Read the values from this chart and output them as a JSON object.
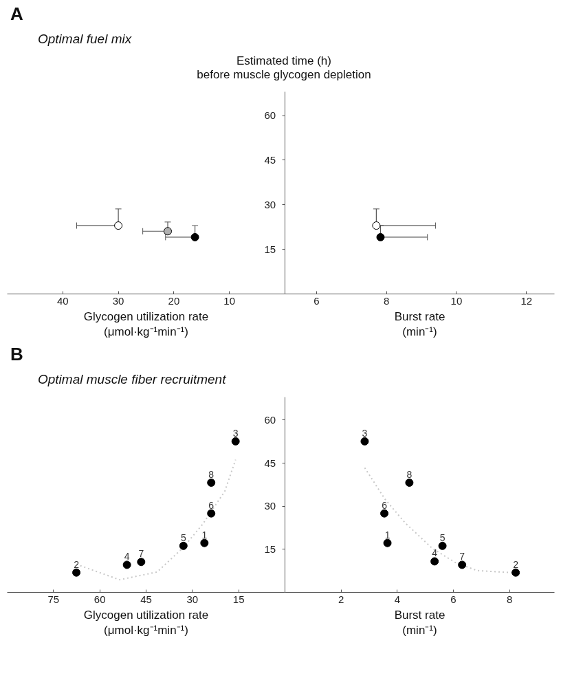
{
  "chart_data": [
    {
      "type": "scatter",
      "title": "A",
      "subtitle": "Optimal fuel mix",
      "xlabel": "Glycogen utilization rate\n(μmol·kg⁻¹min⁻¹)",
      "xlim": [
        50,
        0
      ],
      "xticks": [
        40,
        30,
        20,
        10
      ],
      "ylim": [
        0,
        68
      ],
      "yticks": [
        15,
        30,
        45,
        60
      ],
      "grid": false,
      "marker": "circle",
      "series": [
        {
          "color": "#ffffff",
          "x": [
            30
          ],
          "values": [
            23
          ],
          "errors": [
            [
              23,
              28.6
            ]
          ],
          "xerrors": [
            [
              30,
              37.5
            ]
          ]
        },
        {
          "color": "#b0b0b0",
          "x": [
            21.1
          ],
          "values": [
            21.1
          ],
          "errors": [
            [
              21.1,
              24.2
            ]
          ],
          "xerrors": [
            [
              21.1,
              25.6
            ]
          ]
        },
        {
          "color": "#000000",
          "x": [
            16.2
          ],
          "values": [
            19.1
          ],
          "errors": [
            [
              19.1,
              23
            ]
          ],
          "xerrors": [
            [
              16.2,
              21.5
            ]
          ]
        }
      ]
    },
    {
      "type": "scatter",
      "ylabel": "Estimated time (h)\nbefore muscle glycogen depletion",
      "xlabel": "Burst rate\n(min⁻¹)",
      "xlim": [
        5.1,
        12.8
      ],
      "xticks": [
        6,
        8,
        10,
        12
      ],
      "ylim": [
        0,
        68
      ],
      "yticks": [
        15,
        30,
        45,
        60
      ],
      "tick_labels": "x",
      "grid": false,
      "marker": "circle",
      "series": [
        {
          "color": "#ffffff",
          "x": [
            7.71
          ],
          "values": [
            23
          ],
          "errors": [
            [
              23,
              28.6
            ]
          ],
          "xerrors": [
            [
              7.71,
              9.4
            ]
          ]
        },
        {
          "color": "#000000",
          "x": [
            7.83
          ],
          "values": [
            19.1
          ],
          "errors": [
            [
              19.1,
              23
            ]
          ],
          "xerrors": [
            [
              7.83,
              9.17
            ]
          ]
        }
      ]
    },
    {
      "type": "scatter",
      "title": "B",
      "subtitle": "Optimal muscle fiber recruitment",
      "xlabel": "Glycogen utilization rate\n(μmol·kg⁻¹min⁻¹)",
      "xlim": [
        90,
        0
      ],
      "xticks": [
        75,
        60,
        45,
        30,
        15
      ],
      "ylim": [
        0,
        68
      ],
      "yticks": [
        15,
        30,
        45,
        60
      ],
      "grid": false,
      "marker": "circle",
      "series": [
        {
          "type": "line",
          "marker": "none",
          "color": "#c8c8c8",
          "line_style": "dotted",
          "x": [
            67.6,
            53.6,
            41.4,
            32.9,
            26.7,
            19.5,
            16
          ],
          "values": [
            9.8,
            4.4,
            7.1,
            15.7,
            23.7,
            35.2,
            46.2
          ]
        },
        {
          "color": "#000000",
          "x": [
            26.1,
            67.6,
            16.0,
            51.2,
            32.9,
            23.9,
            46.6,
            23.9
          ],
          "values": [
            17.2,
            6.9,
            52.6,
            9.6,
            16.2,
            27.5,
            10.6,
            38.2
          ]
        }
      ],
      "annotations": [
        {
          "text": "1",
          "x": 26.1,
          "y": 17.2
        },
        {
          "text": "2",
          "x": 67.6,
          "y": 6.9
        },
        {
          "text": "3",
          "x": 16.0,
          "y": 52.6
        },
        {
          "text": "4",
          "x": 51.2,
          "y": 9.6
        },
        {
          "text": "5",
          "x": 32.9,
          "y": 16.2
        },
        {
          "text": "6",
          "x": 23.9,
          "y": 27.5
        },
        {
          "text": "7",
          "x": 46.6,
          "y": 10.6
        },
        {
          "text": "8",
          "x": 23.9,
          "y": 38.2
        }
      ]
    },
    {
      "type": "scatter",
      "xlabel": "Burst rate\n(min⁻¹)",
      "xlim": [
        0,
        9.6
      ],
      "xticks": [
        2,
        4,
        6,
        8
      ],
      "ylim": [
        0,
        68
      ],
      "yticks": [
        15,
        30,
        45,
        60
      ],
      "tick_labels": "x",
      "grid": false,
      "marker": "circle",
      "series": [
        {
          "type": "line",
          "marker": "none",
          "color": "#c8c8c8",
          "line_style": "dotted",
          "x": [
            2.84,
            3.56,
            4.28,
            5.24,
            6.05,
            6.84,
            8.2
          ],
          "values": [
            43.4,
            32.5,
            24.2,
            15.4,
            10.5,
            7.6,
            6.8
          ]
        },
        {
          "color": "#000000",
          "x": [
            3.65,
            8.22,
            2.84,
            5.33,
            5.61,
            3.54,
            6.31,
            4.43
          ],
          "values": [
            17.2,
            6.9,
            52.6,
            10.8,
            16.2,
            27.5,
            9.6,
            38.2
          ]
        }
      ],
      "annotations": [
        {
          "text": "1",
          "x": 3.65,
          "y": 17.2
        },
        {
          "text": "2",
          "x": 8.22,
          "y": 6.9
        },
        {
          "text": "3",
          "x": 2.84,
          "y": 52.6
        },
        {
          "text": "4",
          "x": 5.33,
          "y": 10.8
        },
        {
          "text": "5",
          "x": 5.61,
          "y": 16.2
        },
        {
          "text": "6",
          "x": 3.54,
          "y": 27.5
        },
        {
          "text": "7",
          "x": 6.31,
          "y": 9.6
        },
        {
          "text": "8",
          "x": 4.43,
          "y": 38.2
        }
      ]
    }
  ]
}
